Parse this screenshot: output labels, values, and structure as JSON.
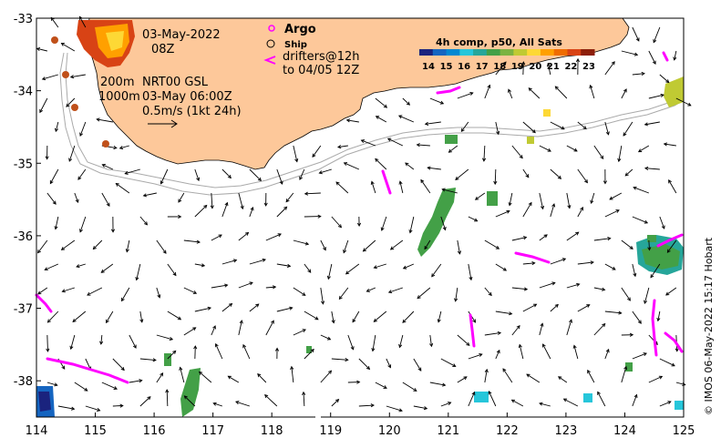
{
  "map": {
    "lon_ticks": [
      "114",
      "115",
      "116",
      "117",
      "118",
      "119",
      "120",
      "121",
      "122",
      "123",
      "124",
      "125"
    ],
    "lat_ticks": [
      "-33",
      "-34",
      "-35",
      "-36",
      "-37",
      "-38"
    ],
    "lon_range": [
      114,
      125
    ],
    "lat_range": [
      -38.5,
      -33
    ]
  },
  "annotations": {
    "date": "03-May-2022",
    "time": "08Z",
    "contour_200": "200m",
    "contour_1000": "1000m",
    "product": "NRT00 GSL",
    "valid_time": "03-May 06:00Z",
    "scale_label": "0.5m/s (1kt 24h)"
  },
  "legend": {
    "argo": "Argo",
    "ship": "Ship",
    "drifters_line1": "drifters@12h",
    "drifters_line2": "to 04/05 12Z",
    "colorbar_title": "4h comp, p50, All Sats",
    "colorbar_ticks": [
      "14",
      "15",
      "16",
      "17",
      "18",
      "19",
      "20",
      "21",
      "22",
      "23"
    ],
    "colorbar_colors": [
      "#1a237e",
      "#1565c0",
      "#0288d1",
      "#26c6da",
      "#26a69a",
      "#43a047",
      "#7cb342",
      "#c0ca33",
      "#fdd835",
      "#ffa000",
      "#ef6c00",
      "#d84315",
      "#8d1f0a"
    ]
  },
  "colors": {
    "land": "#fdc89a",
    "argo": "#ff00ff",
    "argo_float": "#c0501a",
    "drifter": "#ff00ff",
    "contour": "#aaaaaa",
    "arrow": "#000000"
  },
  "credit": "© IMOS 06-May-2022 15:17 Hobart"
}
